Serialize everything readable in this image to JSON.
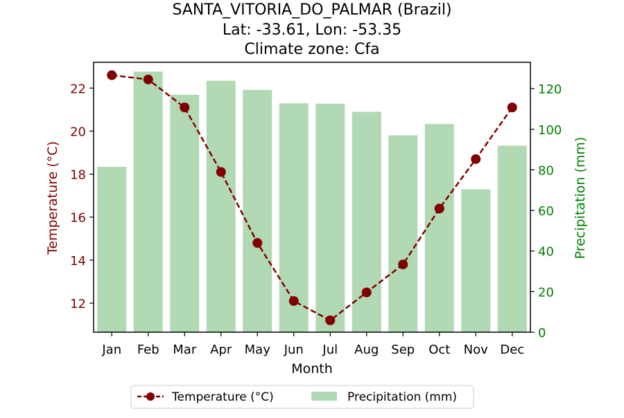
{
  "chart_data": {
    "type": "bar+line",
    "title_lines": [
      "SANTA_VITORIA_DO_PALMAR (Brazil)",
      "Lat: -33.61, Lon: -53.35",
      "Climate zone: Cfa"
    ],
    "xlabel": "Month",
    "ylabel_left": "Temperature (°C)",
    "ylabel_right": "Precipitation (mm)",
    "categories": [
      "Jan",
      "Feb",
      "Mar",
      "Apr",
      "May",
      "Jun",
      "Jul",
      "Aug",
      "Sep",
      "Oct",
      "Nov",
      "Dec"
    ],
    "ylim_left": [
      10.65,
      23.2
    ],
    "ylim_right": [
      0,
      133
    ],
    "yticks_left": [
      12,
      14,
      16,
      18,
      20,
      22
    ],
    "yticks_right": [
      0,
      20,
      40,
      60,
      80,
      100,
      120
    ],
    "series": [
      {
        "name": "Temperature (°C)",
        "axis": "left",
        "kind": "line",
        "color": "#800000",
        "values": [
          22.6,
          22.4,
          21.1,
          18.1,
          14.8,
          12.1,
          11.2,
          12.5,
          13.8,
          16.4,
          18.7,
          21.1
        ]
      },
      {
        "name": "Precipitation (mm)",
        "axis": "right",
        "kind": "bar",
        "color": "#b1d9b3",
        "values": [
          81.5,
          128.4,
          117.0,
          123.9,
          119.4,
          112.8,
          112.6,
          108.6,
          97.0,
          102.6,
          70.4,
          91.9
        ]
      }
    ],
    "left_axis_color": "#800000",
    "right_axis_color": "#008000",
    "legend": {
      "position": "bottom-center",
      "entries": [
        "Temperature (°C)",
        "Precipitation (mm)"
      ]
    },
    "grid": false
  }
}
